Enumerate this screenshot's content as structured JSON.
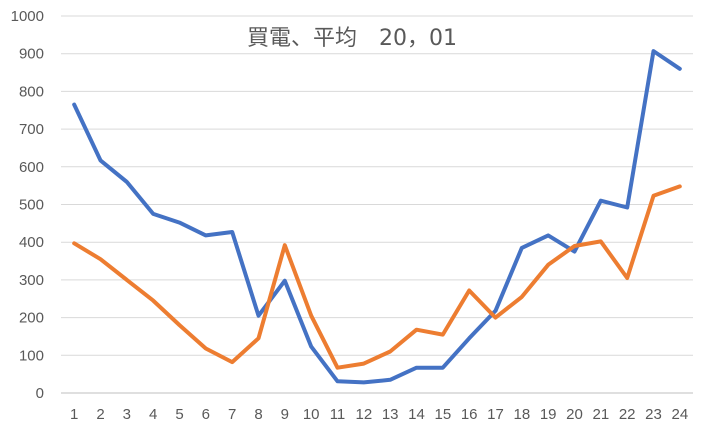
{
  "chart_data": {
    "type": "line",
    "title": "買電、平均　20，01",
    "categories": [
      "1",
      "2",
      "3",
      "4",
      "5",
      "6",
      "7",
      "8",
      "9",
      "10",
      "11",
      "12",
      "13",
      "14",
      "15",
      "16",
      "17",
      "18",
      "19",
      "20",
      "21",
      "22",
      "23",
      "24"
    ],
    "ylim": [
      0,
      1000
    ],
    "yticks": [
      "0",
      "100",
      "200",
      "300",
      "400",
      "500",
      "600",
      "700",
      "800",
      "900",
      "1000"
    ],
    "grid": true,
    "legend": "none",
    "series": [
      {
        "color": "#4472C4",
        "values": [
          765,
          617,
          560,
          475,
          452,
          418,
          427,
          205,
          298,
          123,
          31,
          28,
          35,
          67,
          67,
          145,
          218,
          385,
          418,
          375,
          510,
          492,
          907,
          860
        ]
      },
      {
        "color": "#ED7D31",
        "values": [
          397,
          355,
          300,
          245,
          180,
          118,
          82,
          145,
          392,
          205,
          67,
          78,
          110,
          168,
          155,
          272,
          200,
          255,
          340,
          390,
          402,
          305,
          523,
          548
        ]
      }
    ]
  }
}
